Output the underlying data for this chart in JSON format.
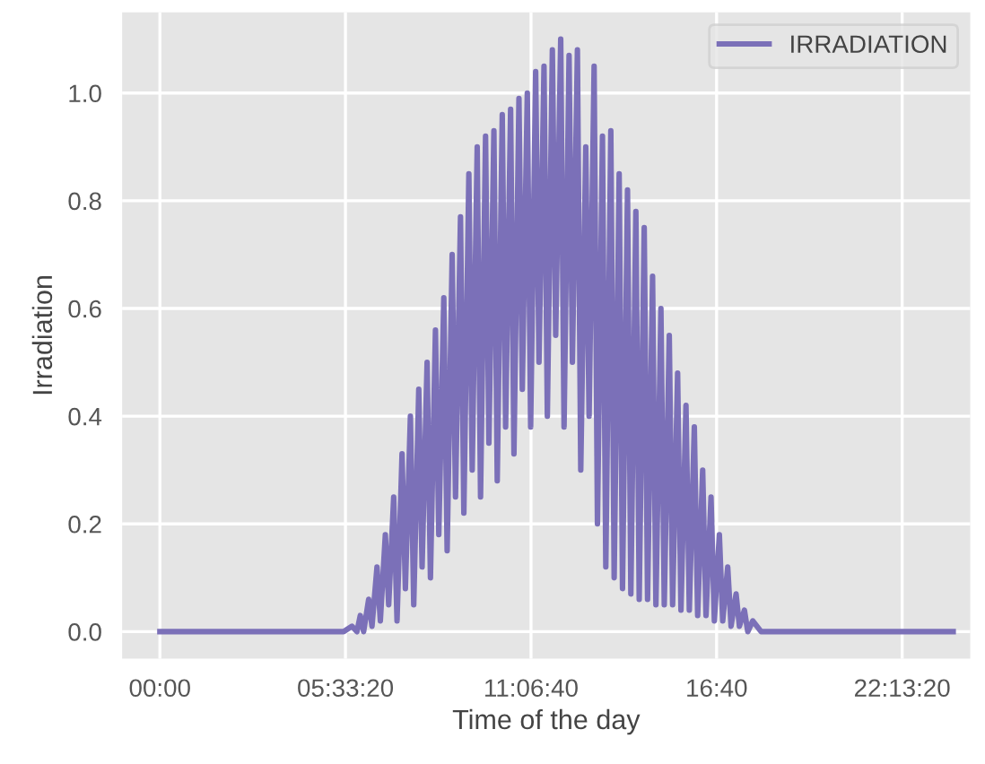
{
  "chart_data": {
    "type": "line",
    "xlabel": "Time of the day",
    "ylabel": "Irradiation",
    "x": [
      0,
      5.5,
      5.75,
      5.9,
      6.0,
      6.1,
      6.25,
      6.35,
      6.5,
      6.6,
      6.75,
      6.85,
      7.0,
      7.1,
      7.25,
      7.35,
      7.5,
      7.6,
      7.75,
      7.85,
      8.0,
      8.1,
      8.25,
      8.35,
      8.5,
      8.6,
      8.75,
      8.85,
      9.0,
      9.1,
      9.25,
      9.35,
      9.5,
      9.6,
      9.75,
      9.85,
      10.0,
      10.1,
      10.25,
      10.35,
      10.5,
      10.6,
      10.75,
      10.85,
      11.0,
      11.1,
      11.25,
      11.35,
      11.5,
      11.6,
      11.75,
      11.85,
      12.0,
      12.1,
      12.25,
      12.35,
      12.5,
      12.6,
      12.75,
      12.85,
      13.0,
      13.1,
      13.25,
      13.35,
      13.5,
      13.6,
      13.75,
      13.85,
      14.0,
      14.1,
      14.25,
      14.35,
      14.5,
      14.6,
      14.75,
      14.85,
      15.0,
      15.1,
      15.25,
      15.35,
      15.5,
      15.6,
      15.75,
      15.85,
      16.0,
      16.1,
      16.25,
      16.35,
      16.5,
      16.6,
      16.75,
      16.85,
      17.0,
      17.1,
      17.25,
      17.35,
      17.5,
      17.6,
      17.75,
      18.0,
      23.75
    ],
    "series": [
      {
        "name": "IRRADIATION",
        "color": "#7b70b8",
        "values": [
          0,
          0,
          0.01,
          0.0,
          0.03,
          0.0,
          0.06,
          0.01,
          0.12,
          0.02,
          0.18,
          0.05,
          0.25,
          0.02,
          0.33,
          0.08,
          0.4,
          0.05,
          0.45,
          0.12,
          0.5,
          0.1,
          0.56,
          0.18,
          0.62,
          0.15,
          0.7,
          0.25,
          0.77,
          0.22,
          0.85,
          0.3,
          0.9,
          0.25,
          0.92,
          0.35,
          0.93,
          0.28,
          0.96,
          0.38,
          0.97,
          0.33,
          0.99,
          0.45,
          1.0,
          0.38,
          1.04,
          0.5,
          1.05,
          0.4,
          1.08,
          0.55,
          1.1,
          0.38,
          1.07,
          0.5,
          1.08,
          0.3,
          0.9,
          0.4,
          1.05,
          0.2,
          0.92,
          0.12,
          0.93,
          0.1,
          0.85,
          0.08,
          0.82,
          0.07,
          0.78,
          0.06,
          0.75,
          0.06,
          0.66,
          0.05,
          0.6,
          0.05,
          0.55,
          0.05,
          0.48,
          0.04,
          0.42,
          0.04,
          0.38,
          0.03,
          0.3,
          0.03,
          0.25,
          0.02,
          0.18,
          0.02,
          0.12,
          0.01,
          0.07,
          0.01,
          0.04,
          0.0,
          0.02,
          0.0,
          0.0
        ]
      }
    ],
    "xlim": [
      -1.13,
      24.26
    ],
    "ylim": [
      -0.05,
      1.15
    ],
    "xticks": [
      {
        "value": 0,
        "label": "00:00"
      },
      {
        "value": 5.5556,
        "label": "05:33:20"
      },
      {
        "value": 11.1111,
        "label": "11:06:40"
      },
      {
        "value": 16.6667,
        "label": "16:40"
      },
      {
        "value": 22.2222,
        "label": "22:13:20"
      }
    ],
    "yticks": [
      {
        "value": 0,
        "label": "0.0"
      },
      {
        "value": 0.2,
        "label": "0.2"
      },
      {
        "value": 0.4,
        "label": "0.4"
      },
      {
        "value": 0.6,
        "label": "0.6"
      },
      {
        "value": 0.8,
        "label": "0.8"
      },
      {
        "value": 1.0,
        "label": "1.0"
      }
    ],
    "grid": true,
    "legend": "top right",
    "line_style": "solid",
    "marker": "none"
  }
}
